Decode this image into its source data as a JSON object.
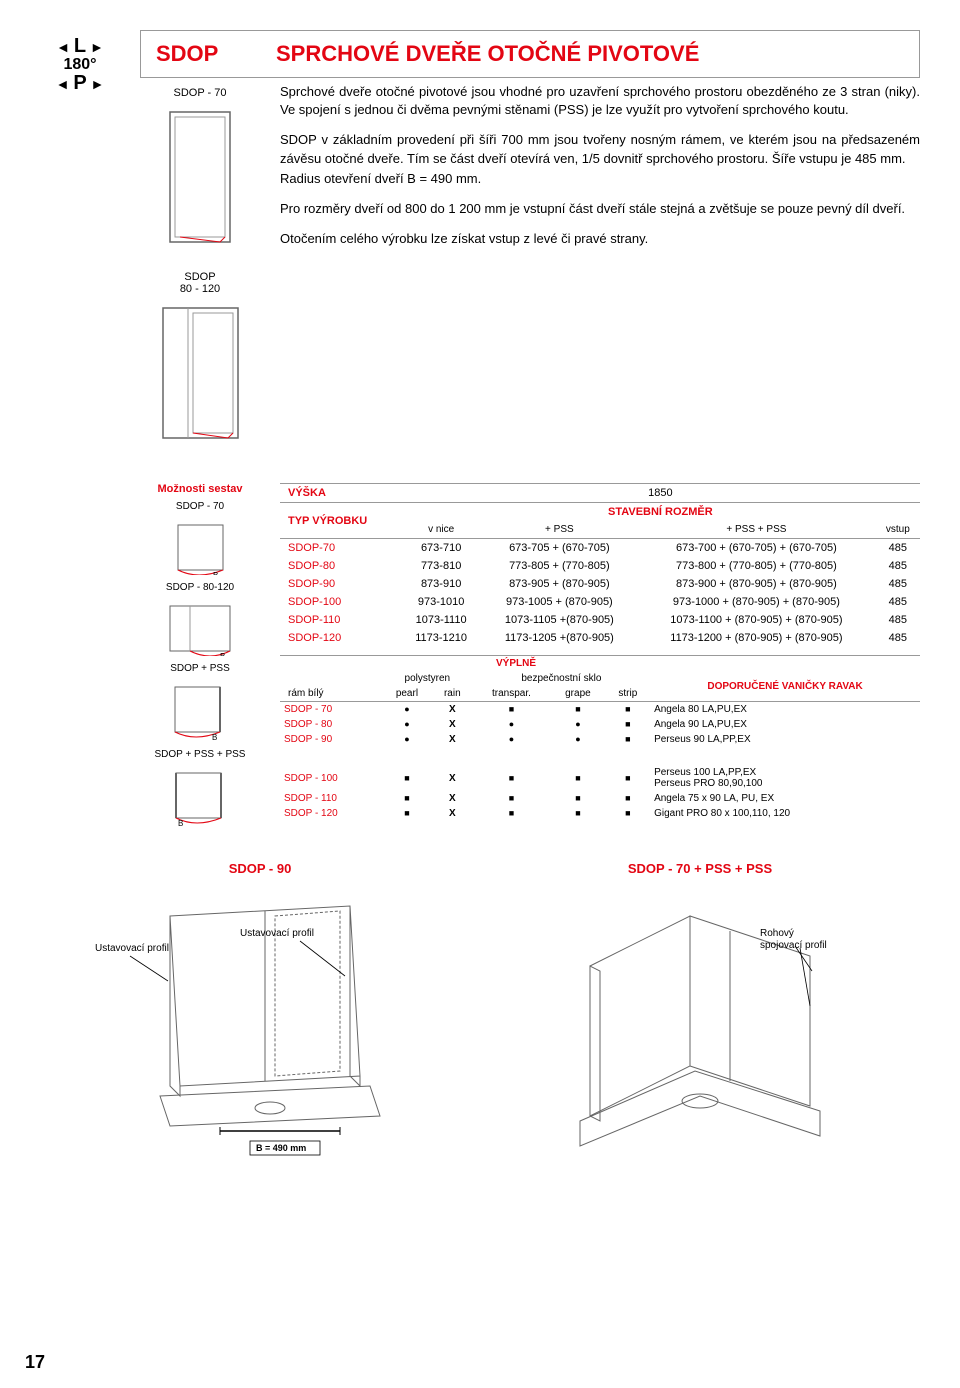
{
  "icon": {
    "l": "L",
    "deg": "180°",
    "p": "P"
  },
  "header": {
    "brand": "SDOP",
    "title": "SPRCHOVÉ DVEŘE OTOČNÉ PIVOTOVÉ"
  },
  "diagrams": {
    "d1_label": "SDOP - 70",
    "d2_label": "SDOP\n80 - 120"
  },
  "paragraphs": {
    "p1": "Sprchové dveře otočné pivotové jsou vhodné pro uzavření sprchového prostoru obezděného ze 3 stran (niky). Ve spojení s jednou či dvěma pevnými stěnami (PSS) je lze využít pro vytvoření sprchového koutu.",
    "p2": "SDOP v základním provedení při šíři 700 mm jsou tvořeny nosným rámem, ve kterém jsou na předsazeném závěsu otočné dveře. Tím se část dveří otevírá ven, 1/5 dovnitř sprchového prostoru. Šíře vstupu je 485 mm.",
    "p3": "Radius otevření dveří B = 490 mm.",
    "p4": "Pro rozměry dveří od 800 do 1 200 mm je vstupní část dveří stále stejná a zvětšuje se pouze pevný díl dveří.",
    "p5": "Otočením celého výrobku lze získat vstup z levé či pravé strany."
  },
  "options": {
    "title": "Možnosti sestav",
    "l1": "SDOP - 70",
    "l2": "SDOP - 80-120",
    "l3": "SDOP + PSS",
    "l4": "SDOP + PSS + PSS"
  },
  "table1": {
    "vyska_label": "VÝŠKA",
    "vyska_value": "1850",
    "typ": "TYP VÝROBKU",
    "stavebni": "STAVEBNÍ ROZMĚR",
    "cols": [
      "v nice",
      "+ PSS",
      "+ PSS + PSS",
      "vstup"
    ],
    "rows": [
      [
        "SDOP-70",
        "673-710",
        "673-705 + (670-705)",
        "673-700 + (670-705) + (670-705)",
        "485"
      ],
      [
        "SDOP-80",
        "773-810",
        "773-805 + (770-805)",
        "773-800 + (770-805) + (770-805)",
        "485"
      ],
      [
        "SDOP-90",
        "873-910",
        "873-905 + (870-905)",
        "873-900 + (870-905) + (870-905)",
        "485"
      ],
      [
        "SDOP-100",
        "973-1010",
        "973-1005 + (870-905)",
        "973-1000 + (870-905) + (870-905)",
        "485"
      ],
      [
        "SDOP-110",
        "1073-1110",
        "1073-1105 +(870-905)",
        "1073-1100 + (870-905) + (870-905)",
        "485"
      ],
      [
        "SDOP-120",
        "1173-1210",
        "1173-1205 +(870-905)",
        "1173-1200 + (870-905) + (870-905)",
        "485"
      ]
    ]
  },
  "table2": {
    "vyplne": "VÝPLNĚ",
    "poly": "polystyren",
    "sklo": "bezpečnostní sklo",
    "vanicky": "DOPORUČENÉ VANIČKY RAVAK",
    "ram": "rám bílý",
    "subcols": [
      "pearl",
      "rain",
      "transpar.",
      "grape",
      "strip"
    ],
    "rows1": [
      {
        "name": "SDOP - 70",
        "vals": [
          "dot",
          "x",
          "sq",
          "sq",
          "sq"
        ],
        "van": "Angela 80 LA,PU,EX"
      },
      {
        "name": "SDOP - 80",
        "vals": [
          "dot",
          "x",
          "dot",
          "dot",
          "sq"
        ],
        "van": "Angela 90 LA,PU,EX"
      },
      {
        "name": "SDOP - 90",
        "vals": [
          "dot",
          "x",
          "dot",
          "dot",
          "sq"
        ],
        "van": "Perseus 90 LA,PP,EX"
      }
    ],
    "rows2": [
      {
        "name": "SDOP - 100",
        "vals": [
          "sq",
          "x",
          "sq",
          "sq",
          "sq"
        ],
        "van": "Perseus 100 LA,PP,EX\nPerseus PRO 80,90,100"
      },
      {
        "name": "SDOP - 110",
        "vals": [
          "sq",
          "x",
          "sq",
          "sq",
          "sq"
        ],
        "van": "Angela 75 x 90 LA, PU, EX"
      },
      {
        "name": "SDOP - 120",
        "vals": [
          "sq",
          "x",
          "sq",
          "sq",
          "sq"
        ],
        "van": "Gigant PRO 80 x 100,110, 120"
      }
    ]
  },
  "figures": {
    "f1_title": "SDOP - 90",
    "f2_title": "SDOP - 70 + PSS + PSS",
    "ustav": "Ustavovací profil",
    "rohovy": "Rohový spojovací profil",
    "b_label": "B = 490 mm"
  },
  "page_num": "17",
  "colors": {
    "brand_red": "#e30613",
    "border_gray": "#999999",
    "line_gray": "#666666"
  }
}
